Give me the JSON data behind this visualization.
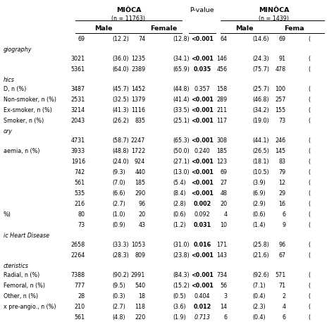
{
  "mioca_label": "MIÔCA",
  "mioca_n": "(n = 11763)",
  "minoca_label": "MINÔCA",
  "minoca_n": "(n = 1439)",
  "pvalue_label": "P-value",
  "background": "#ffffff",
  "rows": [
    {
      "label": "",
      "is_section": false,
      "mioca_m": "69",
      "mioca_mp": "(12.2)",
      "mioca_f": "74",
      "mioca_fp": "(12.8)",
      "pval": "<0.001",
      "pval_bold": true,
      "pval_italic": false,
      "minoca_m": "64",
      "minoca_mp": "(14.6)",
      "minoca_f": "69",
      "minoca_fp": "("
    },
    {
      "label": "giography",
      "is_section": true
    },
    {
      "label": "",
      "is_section": false,
      "mioca_m": "3021",
      "mioca_mp": "(36.0)",
      "mioca_f": "1235",
      "mioca_fp": "(34.1)",
      "pval": "<0.001",
      "pval_bold": true,
      "pval_italic": false,
      "minoca_m": "146",
      "minoca_mp": "(24.3)",
      "minoca_f": "91",
      "minoca_fp": "("
    },
    {
      "label": "",
      "is_section": false,
      "mioca_m": "5361",
      "mioca_mp": "(64.0)",
      "mioca_f": "2389",
      "mioca_fp": "(65.9)",
      "pval": "0.035",
      "pval_bold": true,
      "pval_italic": false,
      "minoca_m": "456",
      "minoca_mp": "(75.7)",
      "minoca_f": "478",
      "minoca_fp": "("
    },
    {
      "label": "hics",
      "is_section": true
    },
    {
      "label": "D, n (%)",
      "is_section": false,
      "mioca_m": "3487",
      "mioca_mp": "(45.7)",
      "mioca_f": "1452",
      "mioca_fp": "(44.8)",
      "pval": "0.357",
      "pval_bold": false,
      "pval_italic": false,
      "minoca_m": "158",
      "minoca_mp": "(25.7)",
      "minoca_f": "100",
      "minoca_fp": "("
    },
    {
      "label": "Non-smoker, n (%)",
      "is_section": false,
      "mioca_m": "2531",
      "mioca_mp": "(32.5)",
      "mioca_f": "1379",
      "mioca_fp": "(41.4)",
      "pval": "<0.001",
      "pval_bold": true,
      "pval_italic": false,
      "minoca_m": "289",
      "minoca_mp": "(46.8)",
      "minoca_f": "257",
      "minoca_fp": "("
    },
    {
      "label": "Ex-smoker, n (%)",
      "is_section": false,
      "mioca_m": "3214",
      "mioca_mp": "(41.3)",
      "mioca_f": "1116",
      "mioca_fp": "(33.5)",
      "pval": "<0.001",
      "pval_bold": true,
      "pval_italic": false,
      "minoca_m": "211",
      "minoca_mp": "(34.2)",
      "minoca_f": "155",
      "minoca_fp": "("
    },
    {
      "label": "Smoker, n (%)",
      "is_section": false,
      "mioca_m": "2043",
      "mioca_mp": "(26.2)",
      "mioca_f": "835",
      "mioca_fp": "(25.1)",
      "pval": "<0.001",
      "pval_bold": true,
      "pval_italic": false,
      "minoca_m": "117",
      "minoca_mp": "(19.0)",
      "minoca_f": "73",
      "minoca_fp": "("
    },
    {
      "label": "ory",
      "is_section": true
    },
    {
      "label": "",
      "is_section": false,
      "mioca_m": "4731",
      "mioca_mp": "(58.7)",
      "mioca_f": "2247",
      "mioca_fp": "(65.3)",
      "pval": "<0.001",
      "pval_bold": true,
      "pval_italic": false,
      "minoca_m": "308",
      "minoca_mp": "(44.1)",
      "minoca_f": "246",
      "minoca_fp": "("
    },
    {
      "label": "aemia, n (%)",
      "is_section": false,
      "mioca_m": "3933",
      "mioca_mp": "(48.8)",
      "mioca_f": "1722",
      "mioca_fp": "(50.0)",
      "pval": "0.240",
      "pval_bold": false,
      "pval_italic": false,
      "minoca_m": "185",
      "minoca_mp": "(26.5)",
      "minoca_f": "145",
      "minoca_fp": "("
    },
    {
      "label": "",
      "is_section": false,
      "mioca_m": "1916",
      "mioca_mp": "(24.0)",
      "mioca_f": "924",
      "mioca_fp": "(27.1)",
      "pval": "<0.001",
      "pval_bold": true,
      "pval_italic": false,
      "minoca_m": "123",
      "minoca_mp": "(18.1)",
      "minoca_f": "83",
      "minoca_fp": "("
    },
    {
      "label": "",
      "is_section": false,
      "mioca_m": "742",
      "mioca_mp": "(9.3)",
      "mioca_f": "440",
      "mioca_fp": "(13.0)",
      "pval": "<0.001",
      "pval_bold": true,
      "pval_italic": false,
      "minoca_m": "69",
      "minoca_mp": "(10.5)",
      "minoca_f": "79",
      "minoca_fp": "("
    },
    {
      "label": "",
      "is_section": false,
      "mioca_m": "561",
      "mioca_mp": "(7.0)",
      "mioca_f": "185",
      "mioca_fp": "(5.4)",
      "pval": "<0.001",
      "pval_bold": true,
      "pval_italic": false,
      "minoca_m": "27",
      "minoca_mp": "(3.9)",
      "minoca_f": "12",
      "minoca_fp": "("
    },
    {
      "label": "",
      "is_section": false,
      "mioca_m": "535",
      "mioca_mp": "(6.6)",
      "mioca_f": "290",
      "mioca_fp": "(8.4)",
      "pval": "<0.001",
      "pval_bold": true,
      "pval_italic": false,
      "minoca_m": "48",
      "minoca_mp": "(6.9)",
      "minoca_f": "29",
      "minoca_fp": "("
    },
    {
      "label": "",
      "is_section": false,
      "mioca_m": "216",
      "mioca_mp": "(2.7)",
      "mioca_f": "96",
      "mioca_fp": "(2.8)",
      "pval": "0.002",
      "pval_bold": true,
      "pval_italic": false,
      "minoca_m": "20",
      "minoca_mp": "(2.9)",
      "minoca_f": "16",
      "minoca_fp": "("
    },
    {
      "label": "%)",
      "is_section": false,
      "mioca_m": "80",
      "mioca_mp": "(1.0)",
      "mioca_f": "20",
      "mioca_fp": "(0.6)",
      "pval": "0.092",
      "pval_bold": false,
      "pval_italic": false,
      "minoca_m": "4",
      "minoca_mp": "(0.6)",
      "minoca_f": "6",
      "minoca_fp": "("
    },
    {
      "label": "",
      "is_section": false,
      "mioca_m": "73",
      "mioca_mp": "(0.9)",
      "mioca_f": "43",
      "mioca_fp": "(1.2)",
      "pval": "0.031",
      "pval_bold": true,
      "pval_italic": false,
      "minoca_m": "10",
      "minoca_mp": "(1.4)",
      "minoca_f": "9",
      "minoca_fp": "("
    },
    {
      "label": "ic Heart Disease",
      "is_section": true
    },
    {
      "label": "",
      "is_section": false,
      "mioca_m": "2658",
      "mioca_mp": "(33.3)",
      "mioca_f": "1053",
      "mioca_fp": "(31.0)",
      "pval": "0.016",
      "pval_bold": true,
      "pval_italic": false,
      "minoca_m": "171",
      "minoca_mp": "(25.8)",
      "minoca_f": "96",
      "minoca_fp": "("
    },
    {
      "label": "",
      "is_section": false,
      "mioca_m": "2264",
      "mioca_mp": "(28.3)",
      "mioca_f": "809",
      "mioca_fp": "(23.8)",
      "pval": "<0.001",
      "pval_bold": true,
      "pval_italic": false,
      "minoca_m": "143",
      "minoca_mp": "(21.6)",
      "minoca_f": "67",
      "minoca_fp": "("
    },
    {
      "label": "cteristics",
      "is_section": true
    },
    {
      "label": "Radial, n (%)",
      "is_section": false,
      "mioca_m": "7388",
      "mioca_mp": "(90.2)",
      "mioca_f": "2991",
      "mioca_fp": "(84.3)",
      "pval": "<0.001",
      "pval_bold": true,
      "pval_italic": false,
      "minoca_m": "734",
      "minoca_mp": "(92.6)",
      "minoca_f": "571",
      "minoca_fp": "("
    },
    {
      "label": "Femoral, n (%)",
      "is_section": false,
      "mioca_m": "777",
      "mioca_mp": "(9.5)",
      "mioca_f": "540",
      "mioca_fp": "(15.2)",
      "pval": "<0.001",
      "pval_bold": true,
      "pval_italic": false,
      "minoca_m": "56",
      "minoca_mp": "(7.1)",
      "minoca_f": "71",
      "minoca_fp": "("
    },
    {
      "label": "Other, n (%)",
      "is_section": false,
      "mioca_m": "28",
      "mioca_mp": "(0.3)",
      "mioca_f": "18",
      "mioca_fp": "(0.5)",
      "pval": "0.404",
      "pval_bold": false,
      "pval_italic": false,
      "minoca_m": "3",
      "minoca_mp": "(0.4)",
      "minoca_f": "2",
      "minoca_fp": "("
    },
    {
      "label": "x pre-angio., n (%)",
      "is_section": false,
      "mioca_m": "210",
      "mioca_mp": "(2.7)",
      "mioca_f": "118",
      "mioca_fp": "(3.6)",
      "pval": "0.012",
      "pval_bold": true,
      "pval_italic": false,
      "minoca_m": "14",
      "minoca_mp": "(2.3)",
      "minoca_f": "4",
      "minoca_fp": "("
    },
    {
      "label": "",
      "is_section": false,
      "mioca_m": "561",
      "mioca_mp": "(4.8)",
      "mioca_f": "220",
      "mioca_fp": "(1.9)",
      "pval": "0.713",
      "pval_bold": false,
      "pval_italic": true,
      "minoca_m": "6",
      "minoca_mp": "(0.4)",
      "minoca_f": "6",
      "minoca_fp": "("
    }
  ]
}
